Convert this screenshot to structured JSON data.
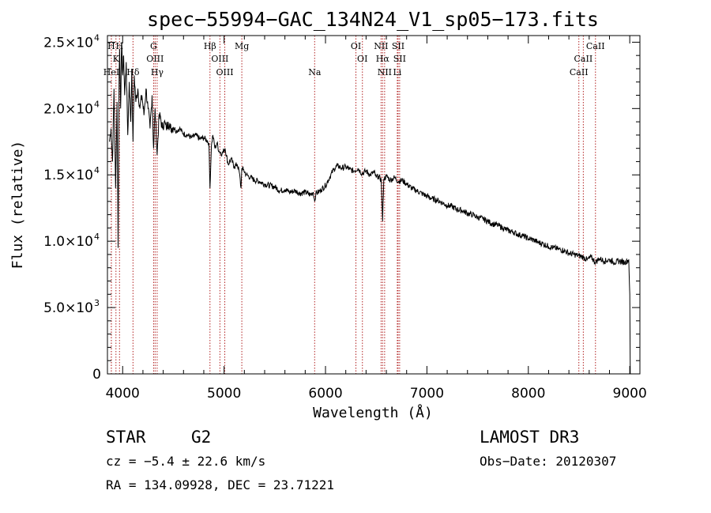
{
  "chart_data": {
    "type": "line",
    "title": "spec−55994−GAC_134N24_V1_sp05−173.fits",
    "xlabel": "Wavelength (Å)",
    "ylabel": "Flux (relative)",
    "xlim": [
      3850,
      9100
    ],
    "ylim": [
      0,
      25500
    ],
    "xticks": [
      {
        "value": 4000,
        "label": "4000"
      },
      {
        "value": 5000,
        "label": "5000"
      },
      {
        "value": 6000,
        "label": "6000"
      },
      {
        "value": 7000,
        "label": "7000"
      },
      {
        "value": 8000,
        "label": "8000"
      },
      {
        "value": 9000,
        "label": "9000"
      }
    ],
    "yticks": [
      {
        "value": 0,
        "mant": "0",
        "exp": ""
      },
      {
        "value": 5000,
        "mant": "5.0×10",
        "exp": "3"
      },
      {
        "value": 10000,
        "mant": "1.0×10",
        "exp": "4"
      },
      {
        "value": 15000,
        "mant": "1.5×10",
        "exp": "4"
      },
      {
        "value": 20000,
        "mant": "2.0×10",
        "exp": "4"
      },
      {
        "value": 25000,
        "mant": "2.5×10",
        "exp": "4"
      }
    ],
    "spectrum": {
      "x": [
        3870,
        3885,
        3900,
        3915,
        3930,
        3945,
        3955,
        3965,
        3970,
        3980,
        3990,
        4000,
        4010,
        4020,
        4035,
        4050,
        4065,
        4080,
        4090,
        4102,
        4115,
        4130,
        4150,
        4170,
        4190,
        4210,
        4230,
        4250,
        4270,
        4290,
        4305,
        4320,
        4340,
        4355,
        4370,
        4390,
        4410,
        4430,
        4450,
        4470,
        4500,
        4530,
        4560,
        4600,
        4640,
        4680,
        4720,
        4760,
        4800,
        4830,
        4850,
        4861,
        4875,
        4890,
        4910,
        4930,
        4950,
        4980,
        5010,
        5040,
        5070,
        5100,
        5130,
        5150,
        5167,
        5175,
        5190,
        5220,
        5260,
        5300,
        5350,
        5400,
        5450,
        5500,
        5550,
        5600,
        5650,
        5700,
        5750,
        5800,
        5850,
        5880,
        5893,
        5905,
        5930,
        5960,
        6000,
        6040,
        6080,
        6120,
        6160,
        6200,
        6240,
        6280,
        6320,
        6360,
        6400,
        6440,
        6480,
        6500,
        6520,
        6550,
        6563,
        6575,
        6600,
        6640,
        6680,
        6720,
        6760,
        6800,
        6850,
        6900,
        6950,
        7000,
        7050,
        7100,
        7150,
        7200,
        7250,
        7300,
        7350,
        7400,
        7450,
        7500,
        7550,
        7600,
        7650,
        7700,
        7750,
        7800,
        7850,
        7900,
        7950,
        8000,
        8050,
        8100,
        8150,
        8200,
        8250,
        8300,
        8350,
        8400,
        8450,
        8500,
        8542,
        8580,
        8620,
        8662,
        8700,
        8750,
        8800,
        8850,
        8900,
        8950,
        8990,
        9000,
        9005
      ],
      "y": [
        17500,
        18500,
        16000,
        21500,
        14000,
        20500,
        9500,
        22500,
        24500,
        20000,
        25000,
        22500,
        24000,
        21000,
        23500,
        18000,
        22000,
        19000,
        23000,
        17500,
        22500,
        20500,
        21500,
        20000,
        21000,
        19500,
        21500,
        20000,
        18500,
        21000,
        17000,
        20000,
        16500,
        19000,
        19500,
        18500,
        19000,
        18500,
        19000,
        18500,
        18600,
        18300,
        18500,
        18100,
        18000,
        17800,
        18000,
        17700,
        17800,
        17600,
        17400,
        14000,
        17200,
        18000,
        17000,
        17400,
        16800,
        16600,
        17000,
        15800,
        16200,
        15600,
        15800,
        15200,
        14000,
        15500,
        15400,
        15000,
        14800,
        14600,
        14500,
        14300,
        14200,
        14100,
        13800,
        13900,
        13700,
        13800,
        13600,
        13700,
        13500,
        13700,
        13000,
        13600,
        13700,
        13900,
        14200,
        14800,
        15400,
        15700,
        15500,
        15600,
        15400,
        15300,
        15500,
        15100,
        15300,
        15000,
        15200,
        14800,
        14900,
        14600,
        11500,
        14700,
        14900,
        14600,
        14800,
        14500,
        14600,
        14300,
        14000,
        13800,
        13600,
        13400,
        13200,
        13100,
        12900,
        12700,
        12600,
        12400,
        12300,
        12100,
        12000,
        11800,
        11700,
        11500,
        11300,
        11200,
        11000,
        10800,
        10700,
        10500,
        10400,
        10200,
        10100,
        9900,
        9800,
        9600,
        9500,
        9400,
        9300,
        9100,
        9000,
        8900,
        8800,
        8600,
        8800,
        8400,
        8700,
        8500,
        8600,
        8400,
        8500,
        8400,
        8600,
        6000,
        0
      ]
    },
    "lines": [
      {
        "label": "H",
        "x": 3888,
        "row": 1
      },
      {
        "label": "K",
        "x": 3934,
        "row": 2
      },
      {
        "label": "H",
        "x": 3969,
        "row": 1
      },
      {
        "label": "HeI",
        "x": 3889,
        "row": 3
      },
      {
        "label": "Hδ",
        "x": 4102,
        "row": 3
      },
      {
        "label": "G",
        "x": 4305,
        "row": 1
      },
      {
        "label": "OIII",
        "x": 4320,
        "row": 2
      },
      {
        "label": "Hγ",
        "x": 4340,
        "row": 3
      },
      {
        "label": "Hβ",
        "x": 4861,
        "row": 1
      },
      {
        "label": "OIII",
        "x": 4959,
        "row": 2
      },
      {
        "label": "OIII",
        "x": 5007,
        "row": 3
      },
      {
        "label": "Mg",
        "x": 5175,
        "row": 1
      },
      {
        "label": "Na",
        "x": 5893,
        "row": 3
      },
      {
        "label": "OI",
        "x": 6300,
        "row": 1
      },
      {
        "label": "OI",
        "x": 6364,
        "row": 2
      },
      {
        "label": "NII",
        "x": 6548,
        "row": 1
      },
      {
        "label": "Hα",
        "x": 6563,
        "row": 2
      },
      {
        "label": "NII",
        "x": 6583,
        "row": 3
      },
      {
        "label": "SII",
        "x": 6716,
        "row": 1
      },
      {
        "label": "SII",
        "x": 6731,
        "row": 2
      },
      {
        "label": "Li",
        "x": 6708,
        "row": 3
      },
      {
        "label": "CaII",
        "x": 8498,
        "row": 3
      },
      {
        "label": "CaII",
        "x": 8542,
        "row": 2
      },
      {
        "label": "CaII",
        "x": 8662,
        "row": 1
      }
    ]
  },
  "info": {
    "object_class": "STAR",
    "subclass": "G2",
    "survey": "LAMOST DR3",
    "cz": "cz = −5.4 ± 22.6 km/s",
    "obs_date": "Obs−Date: 20120307",
    "coords": "RA = 134.09928, DEC =  23.71221"
  },
  "colors": {
    "axis": "#000000",
    "spectrum": "#000000",
    "marker_line": "#b22222"
  }
}
